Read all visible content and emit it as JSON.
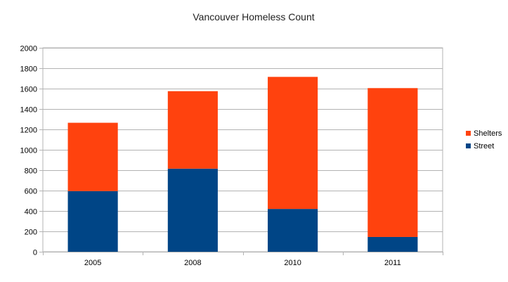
{
  "chart_data": {
    "type": "bar",
    "stacked": true,
    "title": "Vancouver Homeless Count",
    "xlabel": "",
    "ylabel": "",
    "categories": [
      "2005",
      "2008",
      "2010",
      "2011"
    ],
    "series": [
      {
        "name": "Street",
        "values": [
          595,
          815,
          420,
          145
        ],
        "color": "#004586"
      },
      {
        "name": "Shelters",
        "values": [
          670,
          760,
          1295,
          1460
        ],
        "color": "#ff420e"
      }
    ],
    "ylim": [
      0,
      2000
    ],
    "yticks": [
      "0",
      "200",
      "400",
      "600",
      "800",
      "1000",
      "1200",
      "1400",
      "1600",
      "1800",
      "2000"
    ],
    "grid": true,
    "legend": "right",
    "legend_order": [
      "Shelters",
      "Street"
    ],
    "colors": {
      "grid": "#b3b3b3",
      "axis": "#b3b3b3",
      "background": "#ffffff"
    }
  }
}
